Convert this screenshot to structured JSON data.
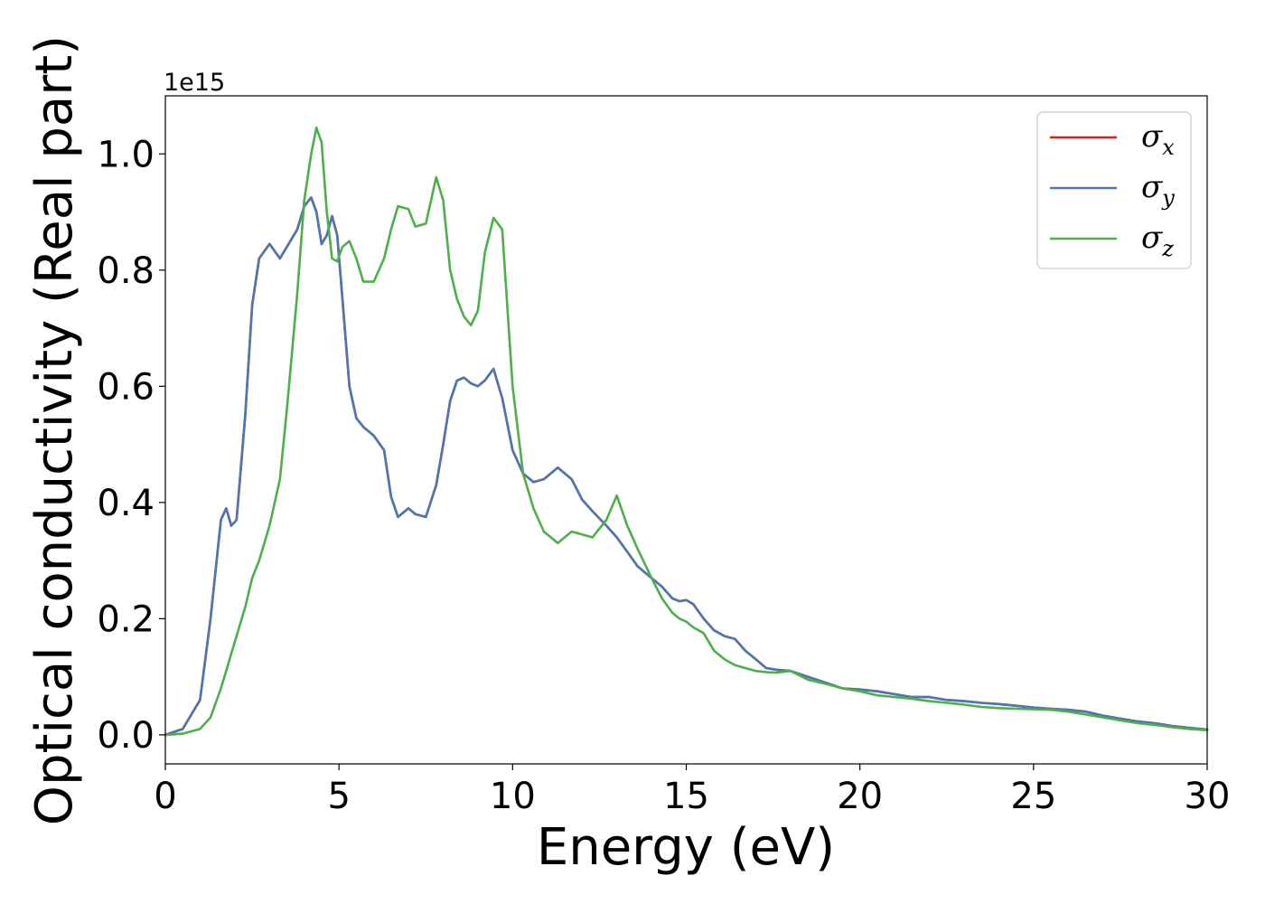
{
  "chart_data": {
    "type": "line",
    "title": "",
    "xlabel": "Energy (eV)",
    "ylabel": "Optical conductivity (Real part)",
    "y_offset_label": "1e15",
    "xlim": [
      0,
      30
    ],
    "ylim": [
      -0.05,
      1.1
    ],
    "xticks": [
      0,
      5,
      10,
      15,
      20,
      25,
      30
    ],
    "yticks": [
      0.0,
      0.2,
      0.4,
      0.6,
      0.8,
      1.0
    ],
    "xtick_labels": [
      "0",
      "5",
      "10",
      "15",
      "20",
      "25",
      "30"
    ],
    "ytick_labels": [
      "0.0",
      "0.2",
      "0.4",
      "0.6",
      "0.8",
      "1.0"
    ],
    "grid": false,
    "legend_position": "top-right",
    "x": [
      0,
      0.5,
      1.0,
      1.3,
      1.6,
      1.75,
      1.9,
      2.05,
      2.3,
      2.5,
      2.7,
      3.0,
      3.3,
      3.5,
      3.8,
      4.0,
      4.2,
      4.35,
      4.5,
      4.65,
      4.8,
      4.95,
      5.1,
      5.3,
      5.5,
      5.7,
      6.0,
      6.3,
      6.5,
      6.7,
      7.0,
      7.2,
      7.5,
      7.8,
      8.0,
      8.2,
      8.4,
      8.6,
      8.8,
      9.0,
      9.2,
      9.45,
      9.7,
      10.0,
      10.3,
      10.6,
      10.9,
      11.3,
      11.7,
      12.0,
      12.3,
      12.7,
      13.0,
      13.3,
      13.6,
      14.0,
      14.3,
      14.6,
      14.8,
      15.0,
      15.2,
      15.5,
      15.8,
      16.1,
      16.4,
      16.7,
      17.0,
      17.3,
      17.6,
      18.0,
      18.5,
      19.0,
      19.5,
      20.0,
      20.5,
      21.0,
      21.5,
      22.0,
      22.5,
      23.0,
      23.5,
      24.0,
      24.5,
      25.0,
      25.5,
      26.0,
      26.5,
      27.0,
      27.5,
      28.0,
      28.5,
      29.0,
      29.5,
      30.0
    ],
    "series": [
      {
        "name": "x",
        "color": "#e41a1c",
        "values": [
          0.0,
          0.01,
          0.06,
          0.2,
          0.37,
          0.39,
          0.36,
          0.37,
          0.55,
          0.74,
          0.82,
          0.845,
          0.82,
          0.84,
          0.87,
          0.91,
          0.925,
          0.9,
          0.845,
          0.86,
          0.893,
          0.86,
          0.75,
          0.6,
          0.545,
          0.53,
          0.515,
          0.49,
          0.41,
          0.375,
          0.39,
          0.38,
          0.375,
          0.43,
          0.5,
          0.575,
          0.61,
          0.615,
          0.605,
          0.6,
          0.61,
          0.63,
          0.58,
          0.49,
          0.45,
          0.435,
          0.44,
          0.46,
          0.44,
          0.405,
          0.385,
          0.36,
          0.34,
          0.315,
          0.29,
          0.27,
          0.255,
          0.235,
          0.23,
          0.232,
          0.225,
          0.2,
          0.18,
          0.17,
          0.165,
          0.145,
          0.13,
          0.115,
          0.112,
          0.11,
          0.1,
          0.09,
          0.08,
          0.078,
          0.075,
          0.07,
          0.065,
          0.065,
          0.06,
          0.058,
          0.055,
          0.053,
          0.05,
          0.047,
          0.045,
          0.043,
          0.04,
          0.033,
          0.028,
          0.023,
          0.02,
          0.015,
          0.012,
          0.009
        ]
      },
      {
        "name": "y",
        "color": "#4a78b0",
        "values": [
          0.0,
          0.01,
          0.06,
          0.2,
          0.37,
          0.39,
          0.36,
          0.37,
          0.55,
          0.74,
          0.82,
          0.845,
          0.82,
          0.84,
          0.87,
          0.91,
          0.925,
          0.9,
          0.845,
          0.86,
          0.893,
          0.86,
          0.75,
          0.6,
          0.545,
          0.53,
          0.515,
          0.49,
          0.41,
          0.375,
          0.39,
          0.38,
          0.375,
          0.43,
          0.5,
          0.575,
          0.61,
          0.615,
          0.605,
          0.6,
          0.61,
          0.63,
          0.58,
          0.49,
          0.45,
          0.435,
          0.44,
          0.46,
          0.44,
          0.405,
          0.385,
          0.36,
          0.34,
          0.315,
          0.29,
          0.27,
          0.255,
          0.235,
          0.23,
          0.232,
          0.225,
          0.2,
          0.18,
          0.17,
          0.165,
          0.145,
          0.13,
          0.115,
          0.112,
          0.11,
          0.1,
          0.09,
          0.08,
          0.078,
          0.075,
          0.07,
          0.065,
          0.065,
          0.06,
          0.058,
          0.055,
          0.053,
          0.05,
          0.047,
          0.045,
          0.043,
          0.04,
          0.033,
          0.028,
          0.023,
          0.02,
          0.015,
          0.012,
          0.009
        ]
      },
      {
        "name": "z",
        "color": "#4daf4a",
        "values": [
          0.0,
          0.002,
          0.01,
          0.03,
          0.08,
          0.11,
          0.14,
          0.17,
          0.22,
          0.27,
          0.3,
          0.36,
          0.44,
          0.56,
          0.76,
          0.92,
          1.0,
          1.045,
          1.02,
          0.9,
          0.82,
          0.815,
          0.84,
          0.85,
          0.82,
          0.78,
          0.78,
          0.82,
          0.87,
          0.91,
          0.905,
          0.875,
          0.88,
          0.96,
          0.92,
          0.8,
          0.75,
          0.72,
          0.705,
          0.73,
          0.83,
          0.89,
          0.87,
          0.6,
          0.45,
          0.39,
          0.35,
          0.33,
          0.35,
          0.345,
          0.34,
          0.37,
          0.412,
          0.36,
          0.32,
          0.27,
          0.235,
          0.21,
          0.2,
          0.195,
          0.185,
          0.175,
          0.145,
          0.13,
          0.12,
          0.115,
          0.11,
          0.108,
          0.107,
          0.11,
          0.095,
          0.088,
          0.08,
          0.075,
          0.068,
          0.065,
          0.062,
          0.058,
          0.055,
          0.052,
          0.048,
          0.046,
          0.045,
          0.044,
          0.043,
          0.04,
          0.035,
          0.03,
          0.025,
          0.02,
          0.017,
          0.013,
          0.01,
          0.008
        ]
      }
    ]
  }
}
